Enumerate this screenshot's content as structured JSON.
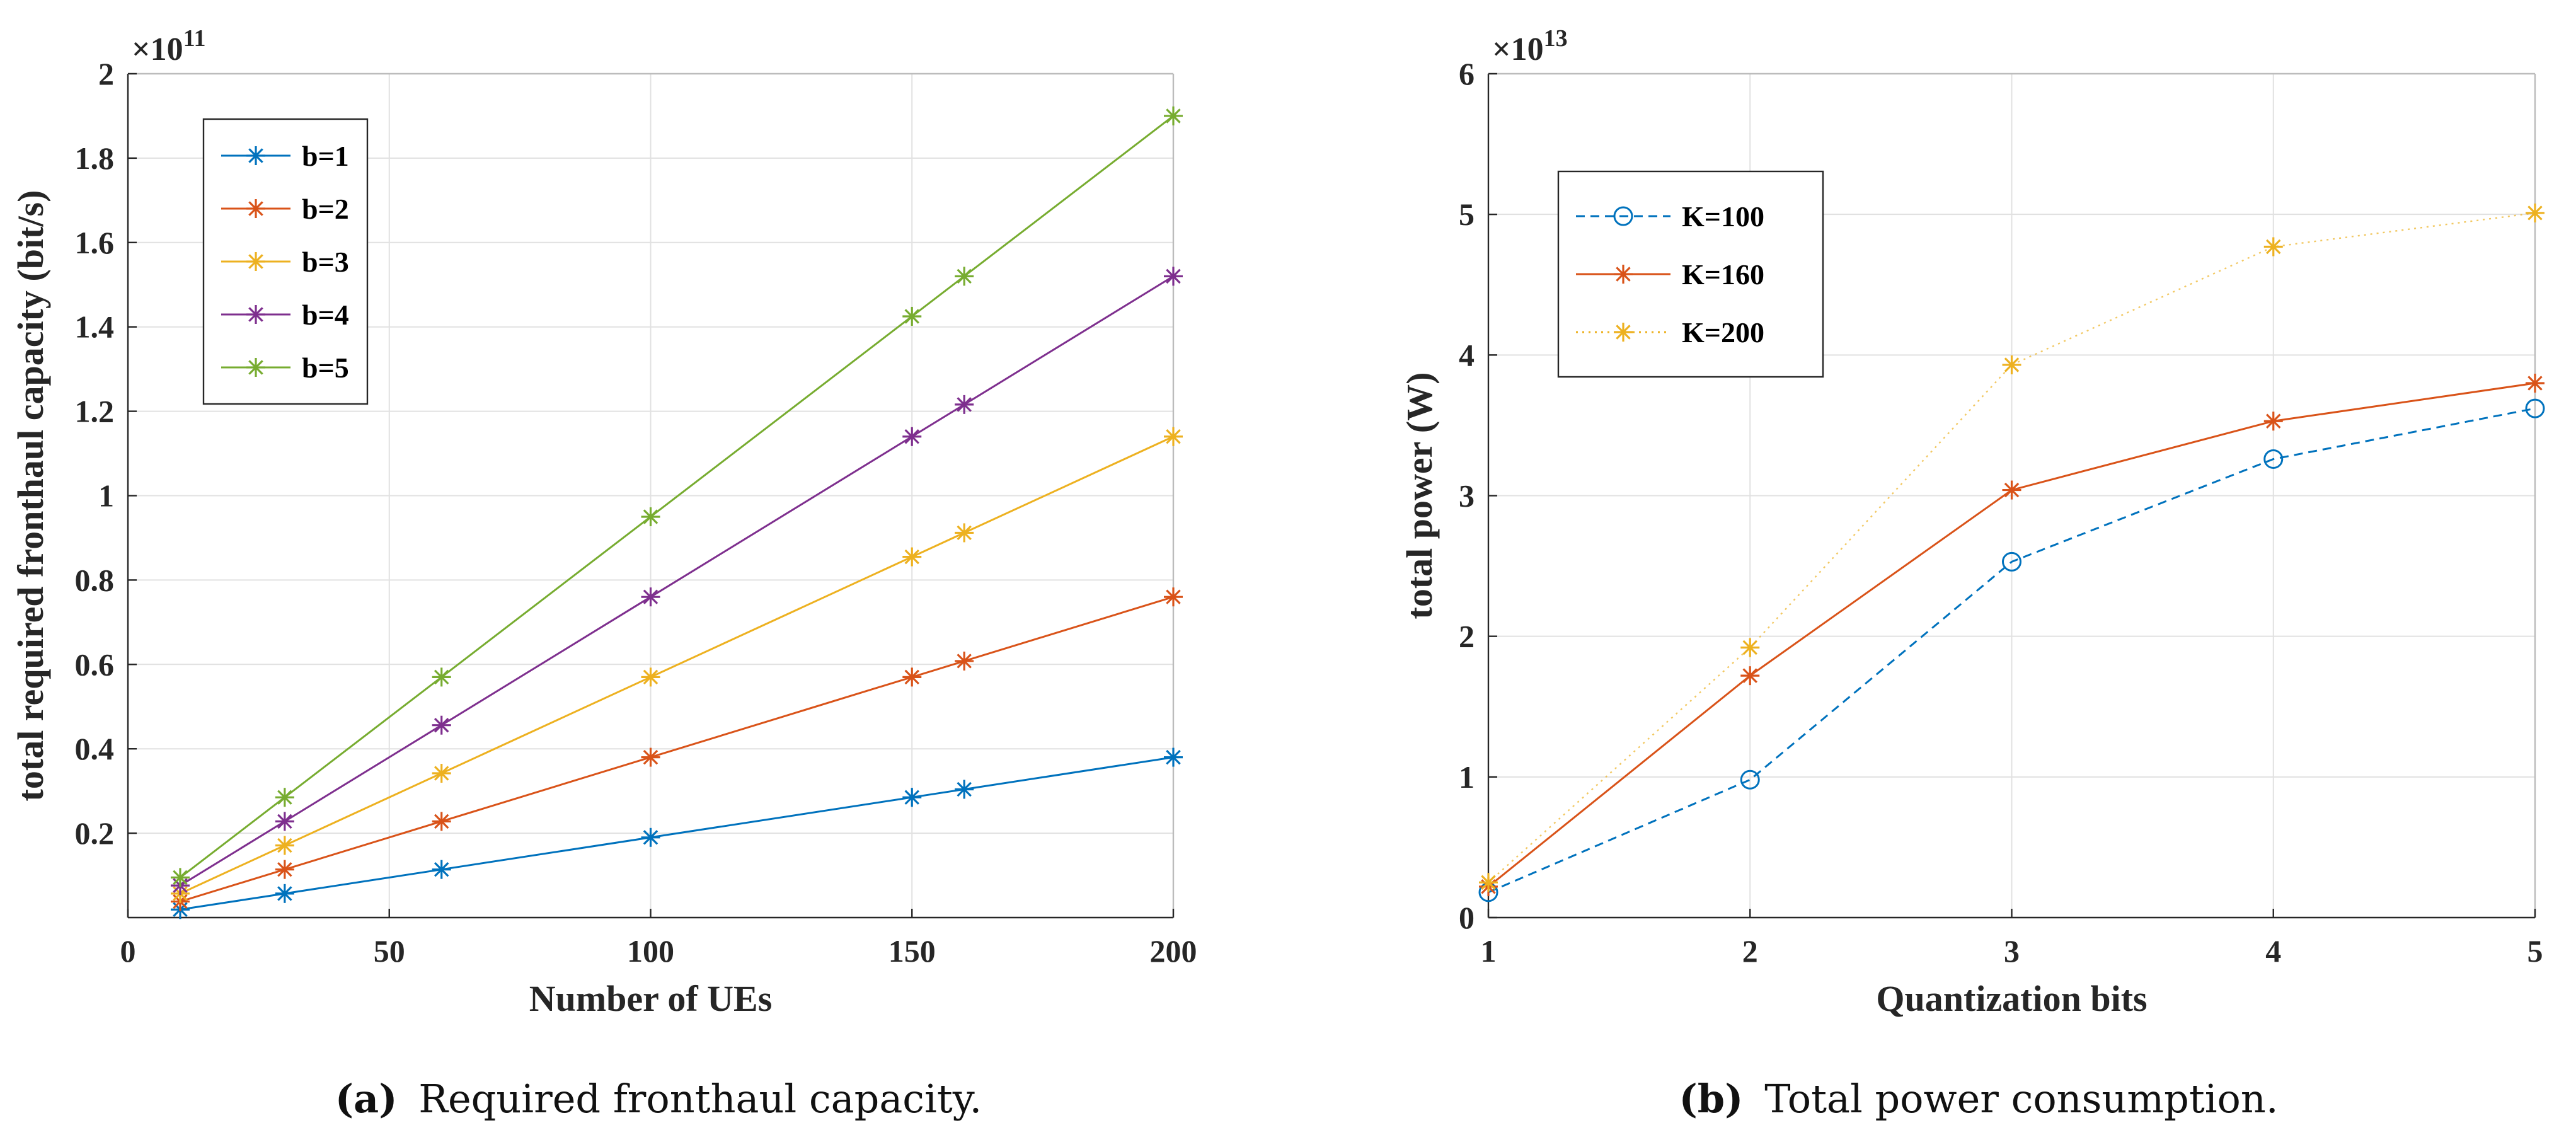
{
  "chart_data": [
    {
      "type": "line",
      "xlabel": "Number of UEs",
      "ylabel": "total required fronthaul capacity (bit/s)",
      "exponent_label": "×10",
      "exponent_power": "11",
      "xlim": [
        0,
        200
      ],
      "ylim": [
        0,
        2
      ],
      "xticks": [
        "0",
        "50",
        "100",
        "150",
        "200"
      ],
      "yticks": [
        "0.2",
        "0.4",
        "0.6",
        "0.8",
        "1",
        "1.2",
        "1.4",
        "1.6",
        "1.8",
        "2"
      ],
      "grid": true,
      "legend_position": "top-left",
      "caption_label": "(a)",
      "caption_text": "Required fronthaul capacity.",
      "x": [
        10,
        30,
        60,
        100,
        150,
        160,
        200
      ],
      "series": [
        {
          "name": "b=1",
          "color": "#0072BD",
          "marker": "asterisk",
          "line": "solid",
          "values": [
            0.019,
            0.057,
            0.114,
            0.19,
            0.285,
            0.304,
            0.38
          ]
        },
        {
          "name": "b=2",
          "color": "#D95319",
          "marker": "asterisk",
          "line": "solid",
          "values": [
            0.038,
            0.114,
            0.228,
            0.38,
            0.57,
            0.608,
            0.76
          ]
        },
        {
          "name": "b=3",
          "color": "#EDB120",
          "marker": "asterisk",
          "line": "solid",
          "values": [
            0.057,
            0.171,
            0.342,
            0.57,
            0.855,
            0.912,
            1.14
          ]
        },
        {
          "name": "b=4",
          "color": "#7E2F8E",
          "marker": "asterisk",
          "line": "solid",
          "values": [
            0.076,
            0.228,
            0.456,
            0.76,
            1.14,
            1.216,
            1.52
          ]
        },
        {
          "name": "b=5",
          "color": "#77AC30",
          "marker": "asterisk",
          "line": "solid",
          "values": [
            0.095,
            0.285,
            0.57,
            0.95,
            1.425,
            1.52,
            1.9
          ]
        }
      ]
    },
    {
      "type": "line",
      "xlabel": "Quantization bits",
      "ylabel": "total power (W)",
      "exponent_label": "×10",
      "exponent_power": "13",
      "xlim": [
        1,
        5
      ],
      "ylim": [
        0,
        6
      ],
      "xticks": [
        "1",
        "2",
        "3",
        "4",
        "5"
      ],
      "yticks": [
        "0",
        "1",
        "2",
        "3",
        "4",
        "5",
        "6"
      ],
      "grid": true,
      "legend_position": "top-left",
      "caption_label": "(b)",
      "caption_text": "Total power consumption.",
      "x": [
        1,
        2,
        3,
        4,
        5
      ],
      "series": [
        {
          "name": "K=100",
          "color": "#0072BD",
          "marker": "circle",
          "line": "dashed",
          "values": [
            0.18,
            0.98,
            2.53,
            3.26,
            3.62
          ]
        },
        {
          "name": "K=160",
          "color": "#D95319",
          "marker": "asterisk",
          "line": "solid",
          "values": [
            0.22,
            1.72,
            3.04,
            3.53,
            3.8
          ]
        },
        {
          "name": "K=200",
          "color": "#EDB120",
          "marker": "asterisk",
          "line": "dotted",
          "values": [
            0.25,
            1.92,
            3.93,
            4.77,
            5.01
          ]
        }
      ]
    }
  ]
}
